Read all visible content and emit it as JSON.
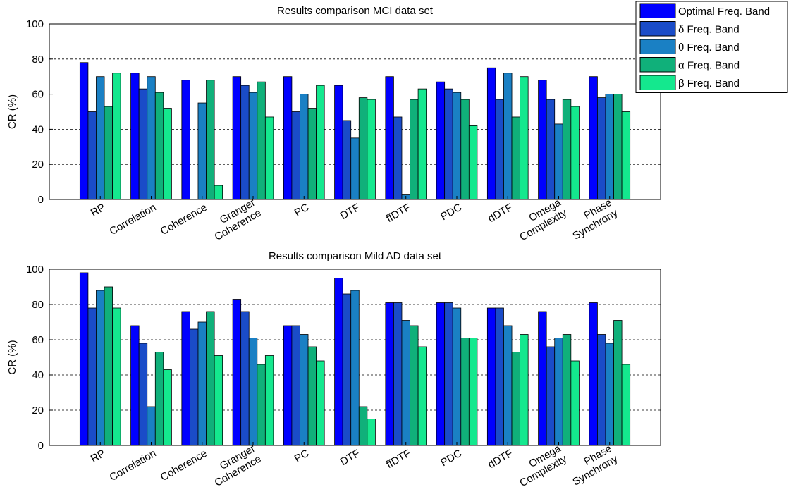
{
  "chart_data": [
    {
      "type": "bar",
      "title": "Results comparison MCI data set",
      "ylabel": "CR (%)",
      "categories": [
        "RP",
        "Correlation",
        "Coherence",
        "Granger Coherence",
        "PC",
        "DTF",
        "ffDTF",
        "PDC",
        "dDTF",
        "Omega Complexity",
        "Phase Synchrony"
      ],
      "series": [
        {
          "name": "Optimal Freq. Band",
          "color": "#0000ff",
          "values": [
            78,
            72,
            68,
            70,
            70,
            65,
            70,
            67,
            75,
            68,
            70
          ]
        },
        {
          "name": "δ Freq. Band",
          "color": "#1a4cc8",
          "values": [
            50,
            63,
            0,
            65,
            50,
            45,
            47,
            63,
            57,
            57,
            58
          ]
        },
        {
          "name": "θ Freq. Band",
          "color": "#1a80c4",
          "values": [
            70,
            70,
            55,
            61,
            60,
            35,
            3,
            61,
            72,
            43,
            60
          ]
        },
        {
          "name": "α Freq. Band",
          "color": "#10b07a",
          "values": [
            53,
            61,
            68,
            67,
            52,
            58,
            57,
            57,
            47,
            57,
            60
          ]
        },
        {
          "name": "β Freq. Band",
          "color": "#14e88e",
          "values": [
            72,
            52,
            8,
            47,
            65,
            57,
            63,
            42,
            70,
            53,
            50
          ]
        }
      ],
      "ylim": [
        0,
        100
      ],
      "yticks": [
        0,
        20,
        40,
        60,
        80,
        100
      ],
      "grid": true,
      "legend": "upper right"
    },
    {
      "type": "bar",
      "title": "Results comparison Mild AD data set",
      "ylabel": "CR (%)",
      "categories": [
        "RP",
        "Correlation",
        "Coherence",
        "Granger Coherence",
        "PC",
        "DTF",
        "ffDTF",
        "PDC",
        "dDTF",
        "Omega Complexity",
        "Phase Synchrony"
      ],
      "series": [
        {
          "color": "#0000ff",
          "values": [
            98,
            68,
            76,
            83,
            68,
            95,
            81,
            81,
            78,
            76,
            81
          ]
        },
        {
          "color": "#1a4cc8",
          "values": [
            78,
            58,
            66,
            76,
            68,
            86,
            81,
            81,
            78,
            56,
            63
          ]
        },
        {
          "color": "#1a80c4",
          "values": [
            88,
            22,
            70,
            61,
            63,
            88,
            71,
            78,
            68,
            61,
            58
          ]
        },
        {
          "color": "#10b07a",
          "values": [
            90,
            53,
            76,
            46,
            56,
            22,
            68,
            61,
            53,
            63,
            71
          ]
        },
        {
          "color": "#14e88e",
          "values": [
            78,
            43,
            51,
            51,
            48,
            15,
            56,
            61,
            63,
            48,
            46
          ]
        }
      ],
      "ylim": [
        0,
        100
      ],
      "yticks": [
        0,
        20,
        40,
        60,
        80,
        100
      ],
      "grid": true
    }
  ]
}
